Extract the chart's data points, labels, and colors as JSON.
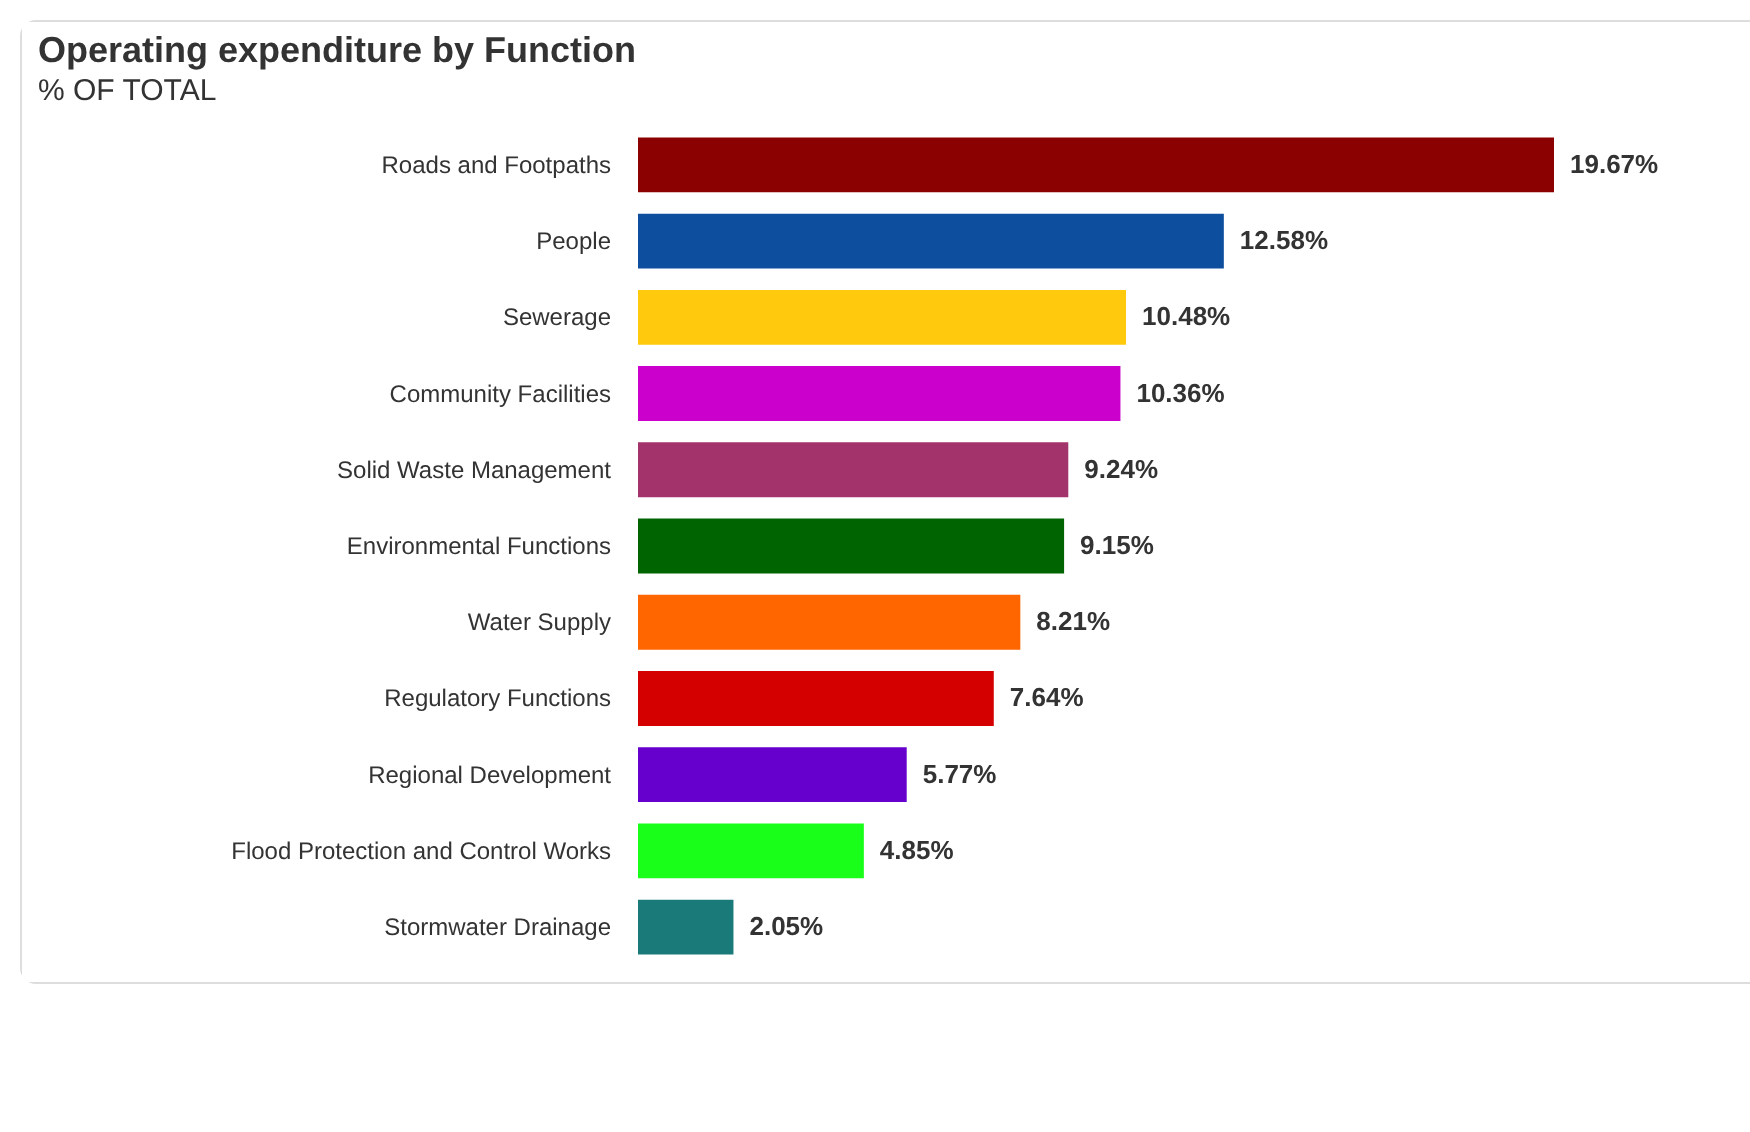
{
  "chart_data": {
    "type": "bar",
    "orientation": "horizontal",
    "title": "Operating expenditure by Function",
    "subtitle": "% OF TOTAL",
    "categories": [
      "Roads and Footpaths",
      "People",
      "Sewerage",
      "Community Facilities",
      "Solid Waste Management",
      "Environmental Functions",
      "Water Supply",
      "Regulatory Functions",
      "Regional Development",
      "Flood Protection and Control Works",
      "Stormwater Drainage"
    ],
    "values": [
      19.67,
      12.58,
      10.48,
      10.36,
      9.24,
      9.15,
      8.21,
      7.64,
      5.77,
      4.85,
      2.05
    ],
    "value_labels": [
      "19.67%",
      "12.58%",
      "10.48%",
      "10.36%",
      "9.24%",
      "9.15%",
      "8.21%",
      "7.64%",
      "5.77%",
      "4.85%",
      "2.05%"
    ],
    "colors": [
      "#8b0000",
      "#0d4f9e",
      "#ffc90e",
      "#cc00cc",
      "#a3336b",
      "#006400",
      "#ff6600",
      "#d40000",
      "#6600cc",
      "#1aff1a",
      "#1a7a7a"
    ],
    "grid": false
  }
}
